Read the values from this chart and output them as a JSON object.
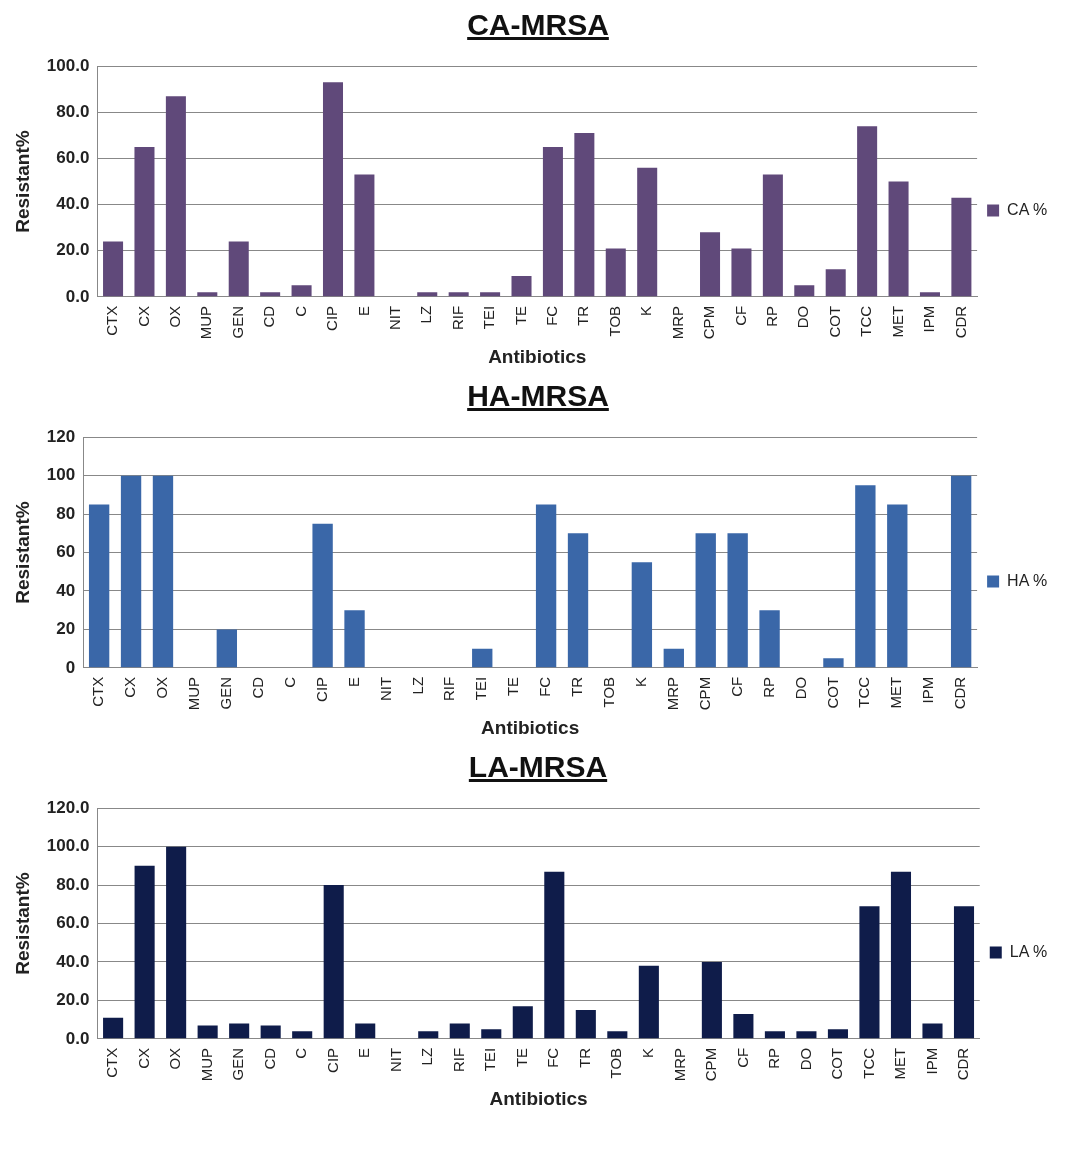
{
  "chart_data": [
    {
      "type": "bar",
      "title": "CA-MRSA",
      "xlabel": "Antibiotics",
      "ylabel": "Resistant%",
      "categories": [
        "CTX",
        "CX",
        "OX",
        "MUP",
        "GEN",
        "CD",
        "C",
        "CIP",
        "E",
        "NIT",
        "LZ",
        "RIF",
        "TEI",
        "TE",
        "FC",
        "TR",
        "TOB",
        "K",
        "MRP",
        "CPM",
        "CF",
        "RP",
        "DO",
        "COT",
        "TCC",
        "MET",
        "IPM",
        "CDR"
      ],
      "series": [
        {
          "name": "CA %",
          "color": "#60497a",
          "values": [
            24,
            65,
            87,
            2,
            24,
            2,
            5,
            93,
            53,
            0,
            2,
            2,
            2,
            9,
            65,
            71,
            21,
            56,
            0,
            28,
            21,
            53,
            5,
            12,
            74,
            50,
            2,
            43
          ]
        }
      ],
      "ylim": [
        0,
        100
      ],
      "yticks": [
        {
          "value": 0,
          "label": "0.0"
        },
        {
          "value": 20,
          "label": "20.0"
        },
        {
          "value": 40,
          "label": "40.0"
        },
        {
          "value": 60,
          "label": "60.0"
        },
        {
          "value": 80,
          "label": "80.0"
        },
        {
          "value": 100,
          "label": "100.0"
        }
      ],
      "grid": "y",
      "legend": "right"
    },
    {
      "type": "bar",
      "title": "HA-MRSA",
      "xlabel": "Antibiotics",
      "ylabel": "Resistant%",
      "categories": [
        "CTX",
        "CX",
        "OX",
        "MUP",
        "GEN",
        "CD",
        "C",
        "CIP",
        "E",
        "NIT",
        "LZ",
        "RIF",
        "TEI",
        "TE",
        "FC",
        "TR",
        "TOB",
        "K",
        "MRP",
        "CPM",
        "CF",
        "RP",
        "DO",
        "COT",
        "TCC",
        "MET",
        "IPM",
        "CDR"
      ],
      "series": [
        {
          "name": "HA %",
          "color": "#3a67a8",
          "values": [
            85,
            100,
            100,
            0,
            20,
            0,
            0,
            75,
            30,
            0,
            0,
            0,
            10,
            0,
            85,
            70,
            0,
            55,
            10,
            70,
            70,
            30,
            0,
            5,
            95,
            85,
            0,
            100
          ]
        }
      ],
      "ylim": [
        0,
        120
      ],
      "yticks": [
        0,
        20,
        40,
        60,
        80,
        100,
        120
      ],
      "grid": "y",
      "legend": "right"
    },
    {
      "type": "bar",
      "title": "LA-MRSA",
      "xlabel": "Antibiotics",
      "ylabel": "Resistant%",
      "categories": [
        "CTX",
        "CX",
        "OX",
        "MUP",
        "GEN",
        "CD",
        "C",
        "CIP",
        "E",
        "NIT",
        "LZ",
        "RIF",
        "TEI",
        "TE",
        "FC",
        "TR",
        "TOB",
        "K",
        "MRP",
        "CPM",
        "CF",
        "RP",
        "DO",
        "COT",
        "TCC",
        "MET",
        "IPM",
        "CDR"
      ],
      "series": [
        {
          "name": "LA %",
          "color": "#0f1c4a",
          "values": [
            11,
            90,
            100,
            7,
            8,
            7,
            4,
            80,
            8,
            0,
            4,
            8,
            5,
            17,
            87,
            15,
            4,
            38,
            0,
            40,
            13,
            4,
            4,
            5,
            69,
            87,
            8,
            69
          ]
        }
      ],
      "ylim": [
        0,
        120
      ],
      "yticks": [
        {
          "value": 0,
          "label": "0.0"
        },
        {
          "value": 20,
          "label": "20.0"
        },
        {
          "value": 40,
          "label": "40.0"
        },
        {
          "value": 60,
          "label": "60.0"
        },
        {
          "value": 80,
          "label": "80.0"
        },
        {
          "value": 100,
          "label": "100.0"
        },
        {
          "value": 120,
          "label": "120.0"
        }
      ],
      "grid": "y",
      "legend": "right"
    }
  ]
}
